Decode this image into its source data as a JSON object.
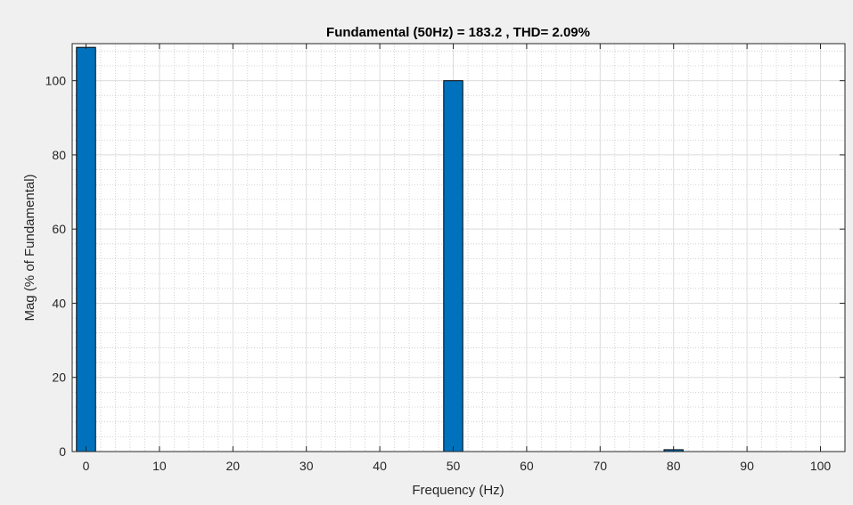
{
  "chart_data": {
    "type": "bar",
    "title": "Fundamental (50Hz) = 183.2 , THD= 2.09%",
    "xlabel": "Frequency (Hz)",
    "ylabel": "Mag (% of Fundamental)",
    "xlim": [
      -5,
      100
    ],
    "ylim": [
      0,
      110
    ],
    "xticks": [
      0,
      10,
      20,
      30,
      40,
      50,
      60,
      70,
      80,
      90,
      100
    ],
    "xtick_labels": [
      "0",
      "10",
      "20",
      "30",
      "40",
      "50",
      "60",
      "70",
      "80",
      "90",
      "100"
    ],
    "yticks": [
      0,
      20,
      40,
      60,
      80,
      100
    ],
    "ytick_labels": [
      "0",
      "20",
      "40",
      "60",
      "80",
      "100"
    ],
    "grid": true,
    "minor_grid": true,
    "bar_color": "#0072bd",
    "bar_edge_color": "#000000",
    "bars": [
      {
        "x": 0,
        "value": 109
      },
      {
        "x": 50,
        "value": 100
      },
      {
        "x": 80,
        "value": 0.5
      }
    ]
  }
}
